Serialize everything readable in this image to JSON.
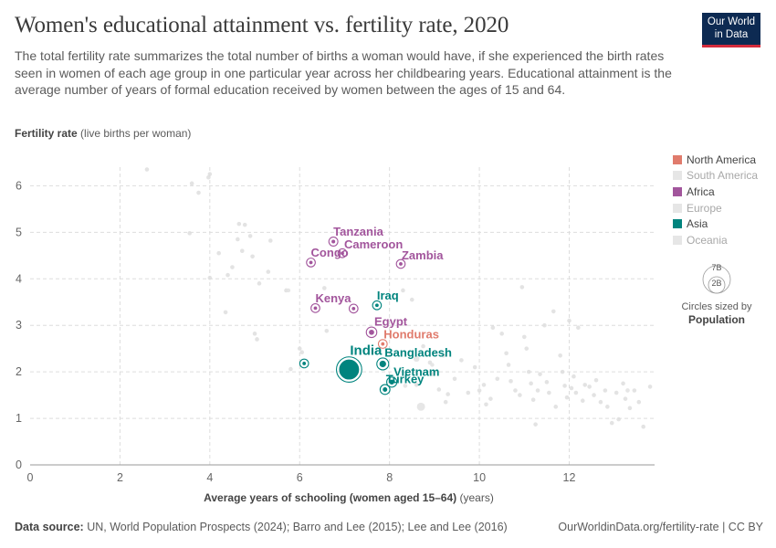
{
  "header": {
    "title": "Women's educational attainment vs. fertility rate, 2020",
    "subtitle": "The total fertility rate summarizes the total number of births a woman would have, if she experienced the birth rates seen in women of each age group in one particular year across her childbearing years. Educational attainment is the average number of years of formal education received by women between the ages of 15 and 64."
  },
  "logo": {
    "line1": "Our World",
    "line2": "in Data"
  },
  "axes": {
    "y_label_bold": "Fertility rate",
    "y_label_rest": "(live births per woman)",
    "x_label_bold": "Average years of schooling (women aged 15–64)",
    "x_label_rest": "(years)"
  },
  "legend": {
    "items": [
      {
        "label": "North America",
        "color": "#e07b6c",
        "active": true
      },
      {
        "label": "South America",
        "color": "#e6e6e6",
        "active": false
      },
      {
        "label": "Africa",
        "color": "#a2559c",
        "active": true
      },
      {
        "label": "Europe",
        "color": "#e6e6e6",
        "active": false
      },
      {
        "label": "Asia",
        "color": "#00847e",
        "active": true
      },
      {
        "label": "Oceania",
        "color": "#e6e6e6",
        "active": false
      }
    ],
    "size_large": "7B",
    "size_small": "2B",
    "size_caption": "Circles sized by",
    "size_caption_bold": "Population"
  },
  "footer": {
    "source_label": "Data source:",
    "source_text": "UN, World Population Prospects (2024); Barro and Lee (2015); Lee and Lee (2016)",
    "right": "OurWorldinData.org/fertility-rate | CC BY"
  },
  "chart_data": {
    "type": "scatter",
    "xlim": [
      0,
      13.9
    ],
    "ylim": [
      0,
      6.4
    ],
    "x_ticks": [
      0,
      2,
      4,
      6,
      8,
      10,
      12
    ],
    "y_ticks": [
      0,
      1,
      2,
      3,
      4,
      5,
      6
    ],
    "grid": true,
    "highlighted": [
      {
        "name": "Tanzania",
        "x": 6.75,
        "y": 4.8,
        "region": "Africa",
        "pop": 0.06
      },
      {
        "name": "Cameroon",
        "x": 6.95,
        "y": 4.55,
        "region": "Africa",
        "pop": 0.03
      },
      {
        "name": "Congo",
        "x": 6.25,
        "y": 4.35,
        "region": "Africa",
        "pop": 0.006
      },
      {
        "name": "Zambia",
        "x": 8.25,
        "y": 4.32,
        "region": "Africa",
        "pop": 0.019
      },
      {
        "name": "Kenya",
        "x": 6.35,
        "y": 3.37,
        "region": "Africa",
        "pop": 0.05
      },
      {
        "name": "",
        "x": 7.2,
        "y": 3.36,
        "region": "Africa",
        "pop": 0.03
      },
      {
        "name": "Iraq",
        "x": 7.72,
        "y": 3.43,
        "region": "Asia",
        "pop": 0.04
      },
      {
        "name": "Egypt",
        "x": 7.6,
        "y": 2.85,
        "region": "Africa",
        "pop": 0.11
      },
      {
        "name": "Honduras",
        "x": 7.85,
        "y": 2.6,
        "region": "North America",
        "pop": 0.01
      },
      {
        "name": "",
        "x": 6.1,
        "y": 2.18,
        "region": "Asia",
        "pop": 0.03
      },
      {
        "name": "India",
        "x": 7.1,
        "y": 2.05,
        "region": "Asia",
        "pop": 1.4
      },
      {
        "name": "Bangladesh",
        "x": 7.85,
        "y": 2.17,
        "region": "Asia",
        "pop": 0.17
      },
      {
        "name": "Vietnam",
        "x": 8.05,
        "y": 1.78,
        "region": "Asia",
        "pop": 0.097
      },
      {
        "name": "Turkey",
        "x": 7.9,
        "y": 1.62,
        "region": "Asia",
        "pop": 0.085
      }
    ],
    "others": [
      [
        2.6,
        6.35
      ],
      [
        3.6,
        6.05
      ],
      [
        3.75,
        5.85
      ],
      [
        3.97,
        6.18
      ],
      [
        4.0,
        6.25
      ],
      [
        4.65,
        5.18
      ],
      [
        4.78,
        5.16
      ],
      [
        4.9,
        4.92
      ],
      [
        4.62,
        4.85
      ],
      [
        3.55,
        4.98
      ],
      [
        4.2,
        4.55
      ],
      [
        4.5,
        4.25
      ],
      [
        4.95,
        4.48
      ],
      [
        4.72,
        4.6
      ],
      [
        5.35,
        4.82
      ],
      [
        4.0,
        4.02
      ],
      [
        4.4,
        4.08
      ],
      [
        5.1,
        3.9
      ],
      [
        5.7,
        3.75
      ],
      [
        5.3,
        4.15
      ],
      [
        4.35,
        3.28
      ],
      [
        5.0,
        2.82
      ],
      [
        5.05,
        2.7
      ],
      [
        5.8,
        2.06
      ],
      [
        6.0,
        2.5
      ],
      [
        6.05,
        2.42
      ],
      [
        6.6,
        2.88
      ],
      [
        6.55,
        3.8
      ],
      [
        8.3,
        3.75
      ],
      [
        8.5,
        3.55
      ],
      [
        8.75,
        2.55
      ],
      [
        8.9,
        2.2
      ],
      [
        9.2,
        2.35
      ],
      [
        8.95,
        1.95
      ],
      [
        9.1,
        1.62
      ],
      [
        9.3,
        1.52
      ],
      [
        9.25,
        1.35
      ],
      [
        8.6,
        1.72
      ],
      [
        9.6,
        2.25
      ],
      [
        9.9,
        2.1
      ],
      [
        10.1,
        1.72
      ],
      [
        10.15,
        1.3
      ],
      [
        10.3,
        2.95
      ],
      [
        10.5,
        2.82
      ],
      [
        10.6,
        2.4
      ],
      [
        10.65,
        2.15
      ],
      [
        10.7,
        1.8
      ],
      [
        10.8,
        1.6
      ],
      [
        10.9,
        1.5
      ],
      [
        10.95,
        3.82
      ],
      [
        11.0,
        2.75
      ],
      [
        11.05,
        2.5
      ],
      [
        11.1,
        2.0
      ],
      [
        11.15,
        1.75
      ],
      [
        11.2,
        1.4
      ],
      [
        11.25,
        0.87
      ],
      [
        11.3,
        1.6
      ],
      [
        11.45,
        3.0
      ],
      [
        11.5,
        1.78
      ],
      [
        11.55,
        1.55
      ],
      [
        11.65,
        3.3
      ],
      [
        11.7,
        1.25
      ],
      [
        11.8,
        2.35
      ],
      [
        11.85,
        2.0
      ],
      [
        11.9,
        1.7
      ],
      [
        11.95,
        1.45
      ],
      [
        12.0,
        3.1
      ],
      [
        12.05,
        1.65
      ],
      [
        12.1,
        1.9
      ],
      [
        12.15,
        1.55
      ],
      [
        12.2,
        2.95
      ],
      [
        12.3,
        1.38
      ],
      [
        12.45,
        1.68
      ],
      [
        12.55,
        1.5
      ],
      [
        12.6,
        1.82
      ],
      [
        12.7,
        1.35
      ],
      [
        12.8,
        1.6
      ],
      [
        12.85,
        1.25
      ],
      [
        12.95,
        0.9
      ],
      [
        13.05,
        1.55
      ],
      [
        13.1,
        0.98
      ],
      [
        13.2,
        1.75
      ],
      [
        13.25,
        1.42
      ],
      [
        13.35,
        1.22
      ],
      [
        13.45,
        1.6
      ],
      [
        13.55,
        1.35
      ],
      [
        13.65,
        0.82
      ],
      [
        13.8,
        1.68
      ],
      [
        10.0,
        1.6
      ],
      [
        10.4,
        1.85
      ],
      [
        9.75,
        1.55
      ],
      [
        11.35,
        1.95
      ],
      [
        12.35,
        1.72
      ],
      [
        10.25,
        1.42
      ],
      [
        9.45,
        1.85
      ]
    ],
    "others_large": [
      {
        "x": 8.7,
        "y": 1.25,
        "pop": 0.22
      },
      {
        "x": 8.35,
        "y": 1.7,
        "pop": 0.06
      },
      {
        "x": 13.3,
        "y": 1.6,
        "pop": 0.06
      },
      {
        "x": 8.95,
        "y": 2.15,
        "pop": 0.05
      },
      {
        "x": 8.6,
        "y": 2.28,
        "pop": 0.12
      },
      {
        "x": 5.75,
        "y": 3.75,
        "pop": 0.04
      }
    ]
  }
}
